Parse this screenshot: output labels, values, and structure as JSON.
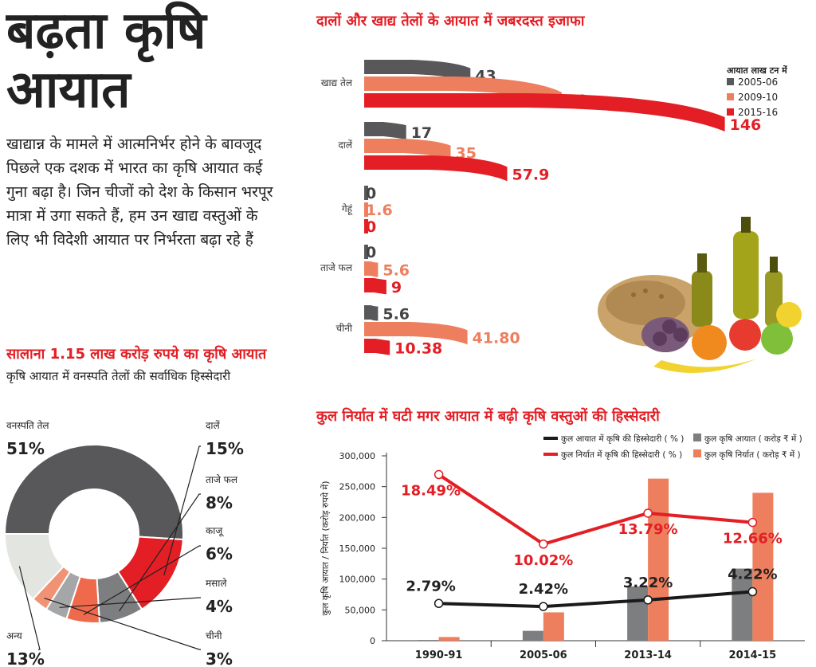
{
  "title": "बढ़ता कृषि आयात",
  "intro": "खाद्यान्न के मामले में आत्मनिर्भर होने के बावजूद पिछले एक दशक में भारत का कृषि आयात कई गुना बढ़ा है। जिन चीजों को देश के किसान भरपूर मात्रा में उगा सकते हैं, हम उन खाद्य वस्तुओं के लिए भी विदेशी आयात पर निर्भरता बढ़ा रहे हैं",
  "colors": {
    "dark": "#58585a",
    "orange": "#ee7f5e",
    "red": "#e31e24",
    "light": "#e3e5e1",
    "black": "#1a1a1a"
  },
  "chart_data": [
    {
      "type": "bar",
      "orientation": "horizontal",
      "title": "दालों और खाद्य तेलों के आयात में जबरदस्त इजाफा",
      "legend_title": "आयात लाख टन में",
      "legend_position": "top-right",
      "categories": [
        "खाद्य तेल",
        "दालें",
        "गेहूं",
        "ताजे फल",
        "चीनी"
      ],
      "series": [
        {
          "name": "2005-06",
          "color": "#58585a",
          "values": [
            43,
            17,
            0,
            0,
            5.6
          ],
          "labels": [
            "43",
            "17",
            "0",
            "0",
            "5.6"
          ]
        },
        {
          "name": "2009-10",
          "color": "#ee7f5e",
          "values": [
            80,
            35,
            1.6,
            5.6,
            41.8
          ],
          "labels": [
            "80",
            "35",
            "1.6",
            "5.6",
            "41.80"
          ]
        },
        {
          "name": "2015-16",
          "color": "#e31e24",
          "values": [
            146,
            57.9,
            0,
            9,
            10.38
          ],
          "labels": [
            "146",
            "57.9",
            "0",
            "9",
            "10.38"
          ]
        }
      ]
    },
    {
      "type": "pie",
      "title": "सालाना 1.15 लाख करोड़ रुपये का कृषि आयात",
      "subtitle": "कृषि आयात में वनस्पति तेलों की सर्वाधिक हिस्सेदारी",
      "slices": [
        {
          "label": "वनस्पति तेल",
          "value": 51,
          "text": "51%",
          "color": "#58585a"
        },
        {
          "label": "दालें",
          "value": 15,
          "text": "15%",
          "color": "#e31e24"
        },
        {
          "label": "ताजे फल",
          "value": 8,
          "text": "8%",
          "color": "#7d7e80"
        },
        {
          "label": "काजू",
          "value": 6,
          "text": "6%",
          "color": "#ef6a4c"
        },
        {
          "label": "मसाले",
          "value": 4,
          "text": "4%",
          "color": "#a5a6a8"
        },
        {
          "label": "चीनी",
          "value": 3,
          "text": "3%",
          "color": "#f29274"
        },
        {
          "label": "अन्य",
          "value": 13,
          "text": "13%",
          "color": "#e3e5e1"
        }
      ]
    },
    {
      "type": "bar",
      "title": "कुल निर्यात में घटी मगर आयात में बढ़ी कृषि वस्तुओं की हिस्सेदारी",
      "ylabel": "कुल कृषि आयात / निर्यात (करोड़ रुपये में)",
      "ylim": [
        0,
        300000
      ],
      "yticks": [
        "0",
        "50,000",
        "100,000",
        "150,000",
        "200,000",
        "250,000",
        "300,000"
      ],
      "categories": [
        "1990-91",
        "2005-06",
        "2013-14",
        "2014-15"
      ],
      "bar_series": [
        {
          "name": "कुल कृषि आयात ( करोड़ ₹ में )",
          "color": "#7d7e80",
          "values": [
            1200,
            16000,
            88000,
            117000
          ]
        },
        {
          "name": "कुल कृषि निर्यात ( करोड़ ₹ में )",
          "color": "#ee7f5e",
          "values": [
            6000,
            46000,
            263000,
            240000
          ]
        }
      ],
      "line_series": [
        {
          "name": "कुल आयात में कृषि की हिस्सेदारी ( % )",
          "color": "#1a1a1a",
          "values": [
            2.79,
            2.42,
            3.22,
            4.22
          ],
          "labels": [
            "2.79%",
            "2.42%",
            "3.22%",
            "4.22%"
          ]
        },
        {
          "name": "कुल निर्यात में कृषि की हिस्सेदारी ( % )",
          "color": "#e31e24",
          "values": [
            18.49,
            10.02,
            13.79,
            12.66
          ],
          "labels": [
            "18.49%",
            "10.02%",
            "13.79%",
            "12.66%"
          ]
        }
      ],
      "legend_position": "top"
    }
  ]
}
